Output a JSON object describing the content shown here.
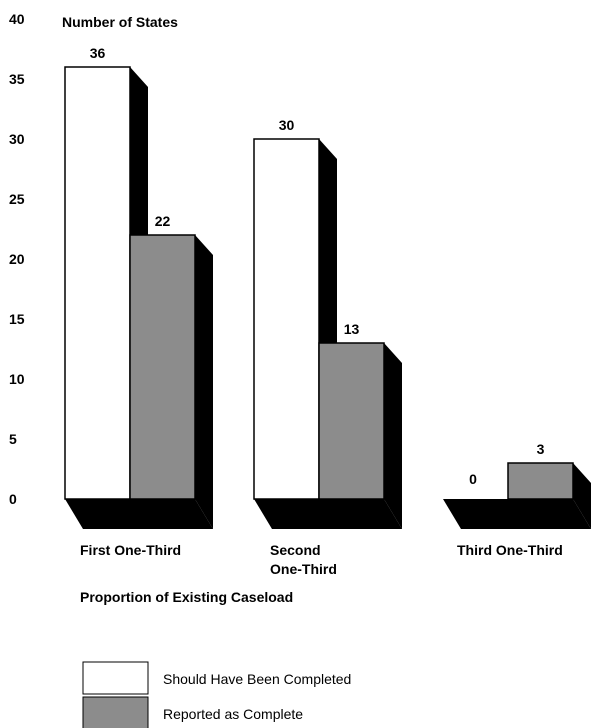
{
  "chart_data": {
    "type": "bar",
    "title": "Number of States",
    "xlabel": "Proportion of Existing Caseload",
    "ylabel": "Number of States",
    "ylim": [
      0,
      40
    ],
    "yticks": [
      0,
      5,
      10,
      15,
      20,
      25,
      30,
      35,
      40
    ],
    "categories": [
      [
        "First One-Third"
      ],
      [
        "Second",
        "One-Third"
      ],
      [
        "Third One-Third"
      ]
    ],
    "series": [
      {
        "name": "Should Have Been Completed",
        "values": [
          36,
          30,
          0
        ],
        "color": "#ffffff"
      },
      {
        "name": "Reported as Complete",
        "values": [
          22,
          13,
          3
        ],
        "color": "#8c8c8c"
      }
    ],
    "data_labels": [
      [
        "36",
        "30",
        "0"
      ],
      [
        "22",
        "13",
        "3"
      ]
    ],
    "grid": false,
    "legend_position": "bottom-left",
    "shadow_color": "#000000"
  }
}
